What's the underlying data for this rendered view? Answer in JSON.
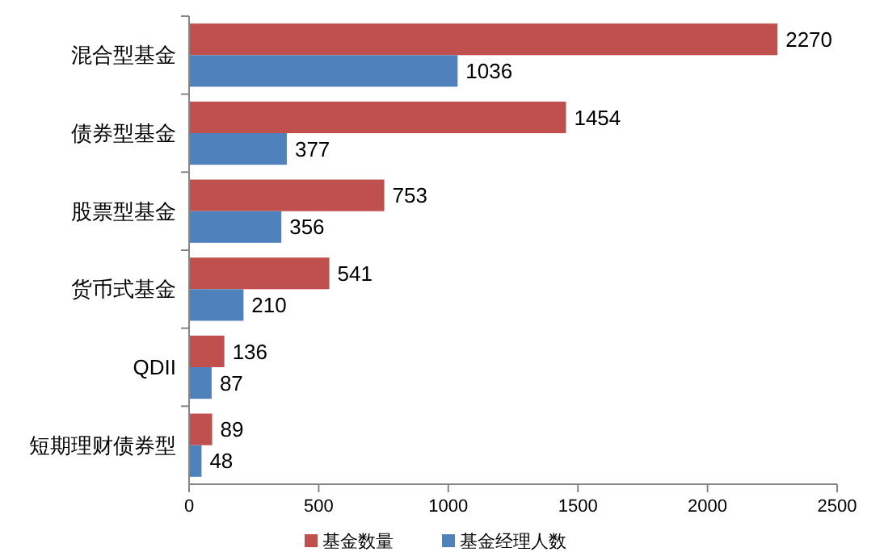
{
  "chart_data": {
    "type": "bar",
    "orientation": "horizontal",
    "categories": [
      "混合型基金",
      "债券型基金",
      "股票型基金",
      "货币式基金",
      "QDII",
      "短期理财债券型"
    ],
    "series": [
      {
        "name": "基金数量",
        "color": "#c0504d",
        "values": [
          2270,
          1454,
          753,
          541,
          136,
          89
        ]
      },
      {
        "name": "基金经理人数",
        "color": "#4f81bd",
        "values": [
          1036,
          377,
          356,
          210,
          87,
          48
        ]
      }
    ],
    "xlim": [
      0,
      2500
    ],
    "xticks": [
      0,
      500,
      1000,
      1500,
      2000,
      2500
    ],
    "data_labels": true,
    "legend": "bottom",
    "grid": false
  }
}
